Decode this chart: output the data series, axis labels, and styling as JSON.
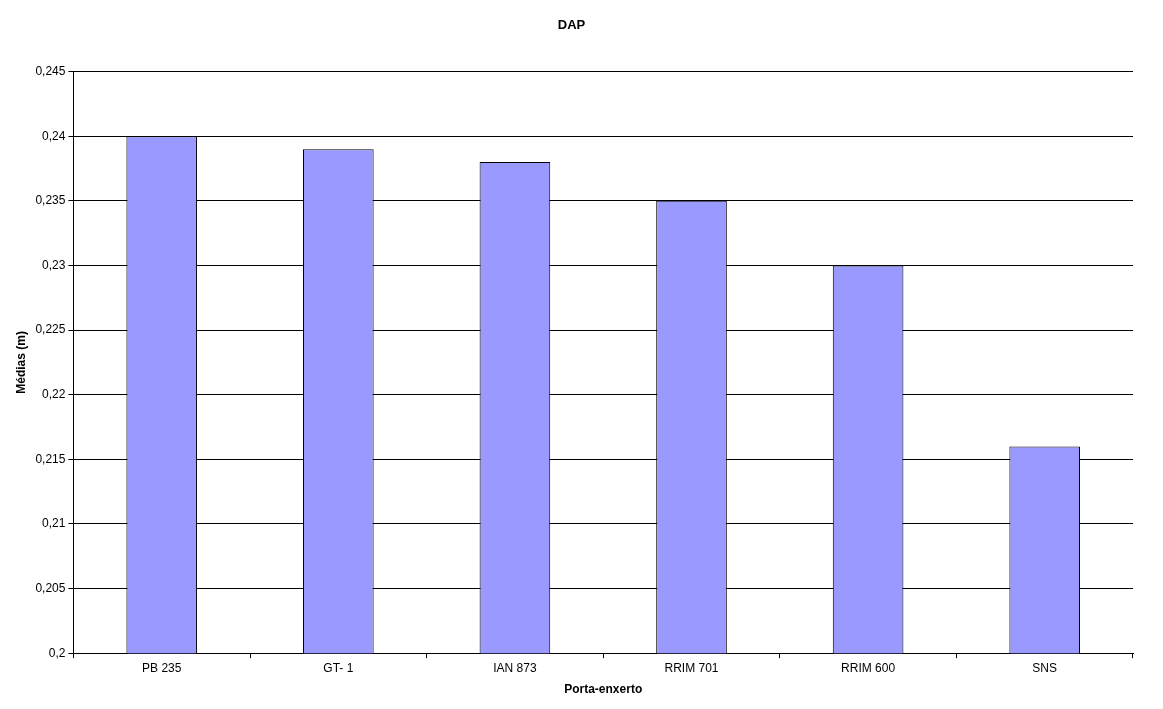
{
  "chart_data": {
    "type": "bar",
    "title": "DAP",
    "xlabel": "Porta-enxerto",
    "ylabel": "Médias (m)",
    "categories": [
      "PB 235",
      "GT- 1",
      "IAN 873",
      "RRIM 701",
      "RRIM 600",
      "SNS"
    ],
    "values": [
      0.24,
      0.239,
      0.238,
      0.235,
      0.23,
      0.216
    ],
    "color": "#9999ff",
    "ylim": [
      0.2,
      0.245
    ],
    "yticks": [
      {
        "value": 0.2,
        "label": "0,2"
      },
      {
        "value": 0.205,
        "label": "0,205"
      },
      {
        "value": 0.21,
        "label": "0,21"
      },
      {
        "value": 0.215,
        "label": "0,215"
      },
      {
        "value": 0.22,
        "label": "0,22"
      },
      {
        "value": 0.225,
        "label": "0,225"
      },
      {
        "value": 0.23,
        "label": "0,23"
      },
      {
        "value": 0.235,
        "label": "0,235"
      },
      {
        "value": 0.24,
        "label": "0,24"
      },
      {
        "value": 0.245,
        "label": "0,245"
      }
    ],
    "grid": "y",
    "legend": false
  }
}
